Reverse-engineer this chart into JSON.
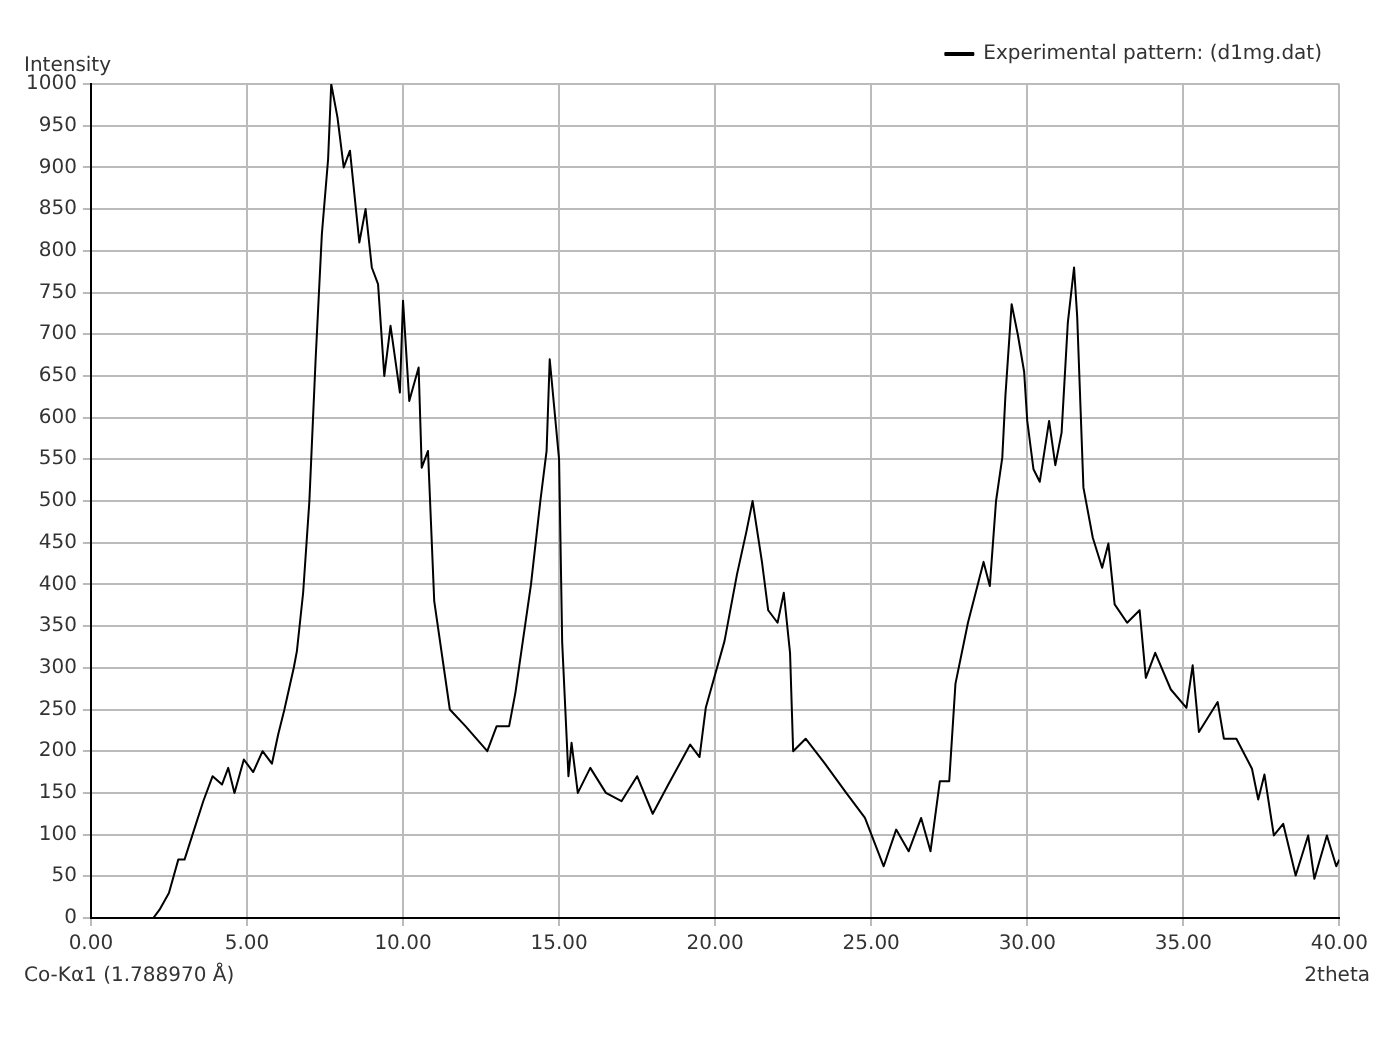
{
  "chart_data": {
    "type": "line",
    "xlabel": "2theta",
    "ylabel": "Intensity",
    "annotations": [
      "Co-Kα1 (1.788970 Å)"
    ],
    "xlim": [
      0,
      40
    ],
    "xticks": [
      {
        "value": 0,
        "label": "0.00"
      },
      {
        "value": 5,
        "label": "5.00"
      },
      {
        "value": 10,
        "label": "10.00"
      },
      {
        "value": 15,
        "label": "15.00"
      },
      {
        "value": 20,
        "label": "20.00"
      },
      {
        "value": 25,
        "label": "25.00"
      },
      {
        "value": 30,
        "label": "30.00"
      },
      {
        "value": 35,
        "label": "35.00"
      },
      {
        "value": 40,
        "label": "40.00"
      }
    ],
    "ylim": [
      0,
      1000
    ],
    "yticks": [
      0,
      50,
      100,
      150,
      200,
      250,
      300,
      350,
      400,
      450,
      500,
      550,
      600,
      650,
      700,
      750,
      800,
      850,
      900,
      950,
      1000
    ],
    "grid": true,
    "legend": "top right",
    "marker": "none",
    "line_style": "solid",
    "series": [
      {
        "name": "Experimental pattern: (d1mg.dat)",
        "color": "#000000",
        "x": [
          0,
          1,
          2,
          2.2,
          2.5,
          2.8,
          3.0,
          3.3,
          3.6,
          3.9,
          4.2,
          4.4,
          4.6,
          4.9,
          5.2,
          5.5,
          5.8,
          6.0,
          6.2,
          6.5,
          6.6,
          6.8,
          7.0,
          7.2,
          7.4,
          7.6,
          7.7,
          7.9,
          8.1,
          8.3,
          8.6,
          8.8,
          9.0,
          9.2,
          9.4,
          9.6,
          9.9,
          10.0,
          10.2,
          10.5,
          10.6,
          10.8,
          11.0,
          11.5,
          12.0,
          12.7,
          13.0,
          13.4,
          13.6,
          14.1,
          14.4,
          14.6,
          14.7,
          15.0,
          15.1,
          15.3,
          15.4,
          15.6,
          16.0,
          16.5,
          17.0,
          17.5,
          18.0,
          18.5,
          19.2,
          19.5,
          19.7,
          20.3,
          20.7,
          21.0,
          21.2,
          21.5,
          21.7,
          22.0,
          22.2,
          22.4,
          22.5,
          22.9,
          23.5,
          24.2,
          24.8,
          25.4,
          25.8,
          26.2,
          26.6,
          26.9,
          27.2,
          27.5,
          27.7,
          28.1,
          28.6,
          28.8,
          29.0,
          29.2,
          29.3,
          29.5,
          29.7,
          29.9,
          30.0,
          30.2,
          30.4,
          30.7,
          30.9,
          31.1,
          31.3,
          31.5,
          31.6,
          31.8,
          32.1,
          32.4,
          32.6,
          32.8,
          33.2,
          33.6,
          33.8,
          34.1,
          34.6,
          35.1,
          35.3,
          35.5,
          36.1,
          36.3,
          36.7,
          37.2,
          37.4,
          37.6,
          37.9,
          38.2,
          38.6,
          39.0,
          39.2,
          39.6,
          39.9,
          40
        ],
        "values": [
          0,
          0,
          0,
          10,
          30,
          70,
          70,
          105,
          140,
          170,
          160,
          180,
          150,
          190,
          175,
          200,
          185,
          220,
          250,
          300,
          320,
          390,
          500,
          670,
          820,
          910,
          1000,
          960,
          900,
          920,
          810,
          850,
          780,
          760,
          650,
          710,
          630,
          740,
          620,
          660,
          540,
          560,
          380,
          250,
          230,
          200,
          230,
          230,
          270,
          400,
          500,
          560,
          670,
          550,
          330,
          170,
          210,
          150,
          180,
          150,
          140,
          170,
          125,
          160,
          208,
          193,
          252,
          332,
          412,
          463,
          500,
          427,
          369,
          354,
          390,
          318,
          200,
          215,
          186,
          150,
          120,
          62,
          106,
          80,
          120,
          80,
          164,
          164,
          281,
          354,
          427,
          398,
          500,
          552,
          626,
          736,
          699,
          655,
          596,
          538,
          523,
          596,
          543,
          582,
          714,
          780,
          721,
          516,
          456,
          420,
          449,
          376,
          354,
          369,
          288,
          318,
          274,
          252,
          303,
          223,
          259,
          215,
          215,
          179,
          142,
          172,
          99,
          113,
          51,
          99,
          47,
          99,
          62,
          70
        ]
      }
    ]
  }
}
